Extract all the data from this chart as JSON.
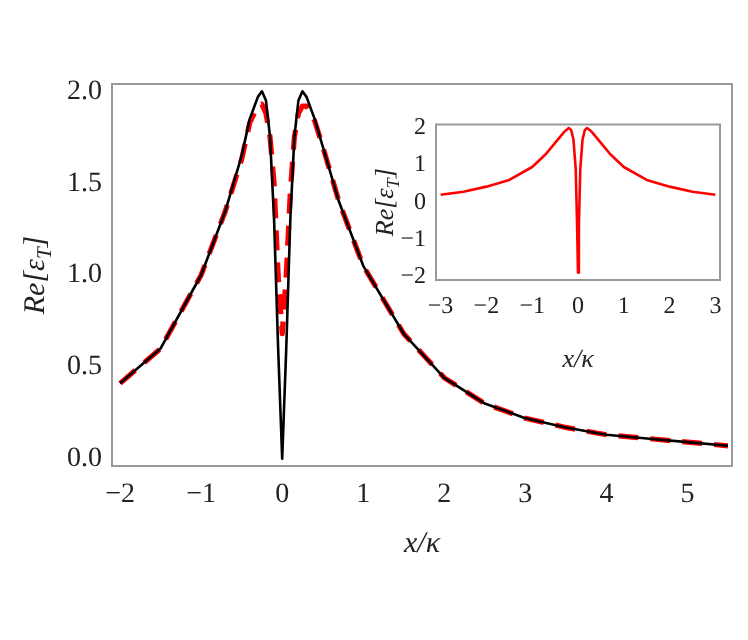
{
  "chart_data": [
    {
      "type": "line",
      "xlabel": "x/κ",
      "ylabel": "Re[ε$_{T}$]",
      "grid": false,
      "legend": false,
      "marker": "none",
      "xlim": [
        -2.1,
        5.55
      ],
      "ylim": [
        -0.04,
        2.04
      ],
      "xticks": [
        {
          "value": -2,
          "label": "−2"
        },
        {
          "value": -1,
          "label": "−1"
        },
        0,
        1,
        2,
        3,
        4,
        5
      ],
      "yticks": [
        {
          "value": 0,
          "label": "0.0"
        },
        0.5,
        {
          "value": 1,
          "label": "1.0"
        },
        1.5,
        {
          "value": 2,
          "label": "2.0"
        }
      ],
      "x": [
        -2,
        -1.5,
        -1,
        -0.7,
        -0.5,
        -0.4,
        -0.3,
        -0.25,
        -0.2,
        -0.15,
        -0.1,
        -0.05,
        0,
        0.05,
        0.1,
        0.15,
        0.2,
        0.25,
        0.3,
        0.4,
        0.5,
        0.7,
        1,
        1.5,
        2,
        2.5,
        3,
        3.5,
        4,
        4.5,
        5,
        5.5
      ],
      "series": [
        {
          "color": "#000000",
          "line_style": "solid",
          "values": [
            0.41,
            0.6,
            1.0,
            1.35,
            1.65,
            1.85,
            1.97,
            2.0,
            1.95,
            1.75,
            1.3,
            0.6,
            0,
            0.6,
            1.3,
            1.75,
            1.95,
            2.0,
            1.97,
            1.85,
            1.7,
            1.4,
            1.05,
            0.68,
            0.44,
            0.3,
            0.22,
            0.17,
            0.13,
            0.11,
            0.09,
            0.07
          ]
        },
        {
          "color": "#ff0000",
          "line_style": "dashed",
          "values": [
            0.41,
            0.6,
            1.0,
            1.35,
            1.63,
            1.83,
            1.92,
            1.93,
            1.88,
            1.75,
            1.5,
            1.0,
            0.68,
            1.0,
            1.45,
            1.75,
            1.88,
            1.92,
            1.92,
            1.84,
            1.7,
            1.4,
            1.05,
            0.68,
            0.44,
            0.3,
            0.22,
            0.17,
            0.13,
            0.11,
            0.09,
            0.07
          ]
        }
      ]
    },
    {
      "type": "line",
      "xlabel": "x/κ",
      "ylabel": "Re[ε$_{T}$]",
      "grid": false,
      "legend": false,
      "marker": "none",
      "xlim": [
        -3.1,
        3.1
      ],
      "ylim": [
        -2.1,
        2.1
      ],
      "xticks": [
        {
          "value": -3,
          "label": "−3"
        },
        {
          "value": -2,
          "label": "−2"
        },
        {
          "value": -1,
          "label": "−1"
        },
        0,
        1,
        2,
        3
      ],
      "yticks": [
        {
          "value": -2,
          "label": "−2"
        },
        {
          "value": -1,
          "label": "−1"
        },
        0,
        1,
        2
      ],
      "x": [
        -3,
        -2.5,
        -2,
        -1.5,
        -1,
        -0.7,
        -0.5,
        -0.3,
        -0.2,
        -0.15,
        -0.1,
        -0.05,
        -0.02,
        0,
        0.02,
        0.05,
        0.1,
        0.15,
        0.2,
        0.3,
        0.5,
        0.7,
        1,
        1.5,
        2,
        2.5,
        3
      ],
      "series": [
        {
          "color": "#ff0000",
          "line_style": "solid",
          "values": [
            0.2,
            0.28,
            0.42,
            0.6,
            0.95,
            1.3,
            1.6,
            1.9,
            2.0,
            1.95,
            1.7,
            0.9,
            -0.6,
            -1.9,
            -0.6,
            0.9,
            1.7,
            1.95,
            2.0,
            1.9,
            1.6,
            1.3,
            0.95,
            0.6,
            0.42,
            0.28,
            0.2
          ]
        }
      ]
    }
  ]
}
